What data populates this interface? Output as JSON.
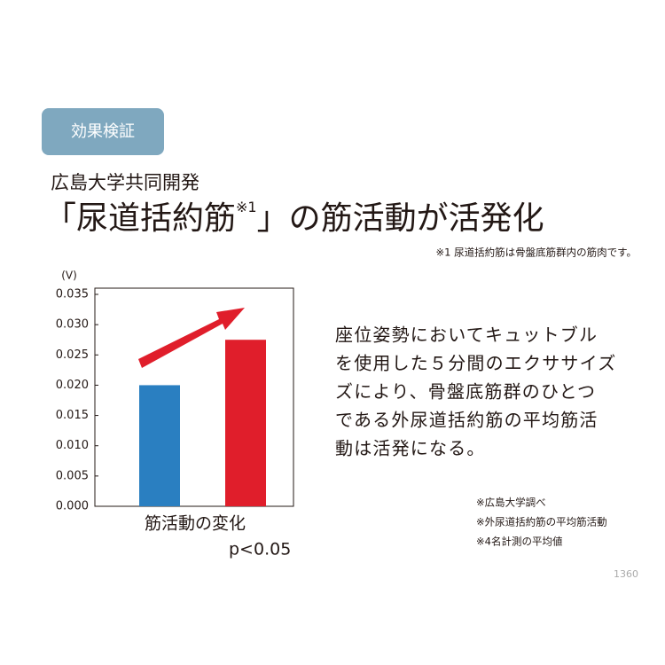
{
  "chart_data": {
    "type": "bar",
    "badge": "効果検証",
    "subtitle": "広島大学共同開発",
    "title_parts": [
      "「尿道括約筋",
      "※1",
      "」の筋活動が活発化"
    ],
    "footnote": "※1 尿道括約筋は骨盤底筋群内の筋肉です。",
    "y_unit": "(V)",
    "x_label": "筋活動の変化",
    "significance": "p<0.05",
    "values": [
      0.02,
      0.0275
    ],
    "colors": [
      "#2a7fc1",
      "#e01e2b"
    ],
    "ylim": [
      0,
      0.035
    ],
    "yticks": [
      {
        "value": 0,
        "label": "0.000"
      },
      {
        "value": 0.005,
        "label": "0.005"
      },
      {
        "value": 0.01,
        "label": "0.010"
      },
      {
        "value": 0.015,
        "label": "0.015"
      },
      {
        "value": 0.02,
        "label": "0.020"
      },
      {
        "value": 0.025,
        "label": "0.025"
      },
      {
        "value": 0.03,
        "label": "0.030"
      },
      {
        "value": 0.035,
        "label": "0.035"
      }
    ],
    "description": [
      "座位姿勢においてキュットブル",
      "を使用した５分間のエクササイズ",
      "ズにより、骨盤底筋群のひとつ",
      "である外尿道括約筋の平均筋活",
      "動は活発になる。"
    ],
    "notes": [
      "※広島大学調べ",
      "※外尿道括約筋の平均筋活動",
      "※4名計測の平均値"
    ],
    "page_number": "1360"
  }
}
